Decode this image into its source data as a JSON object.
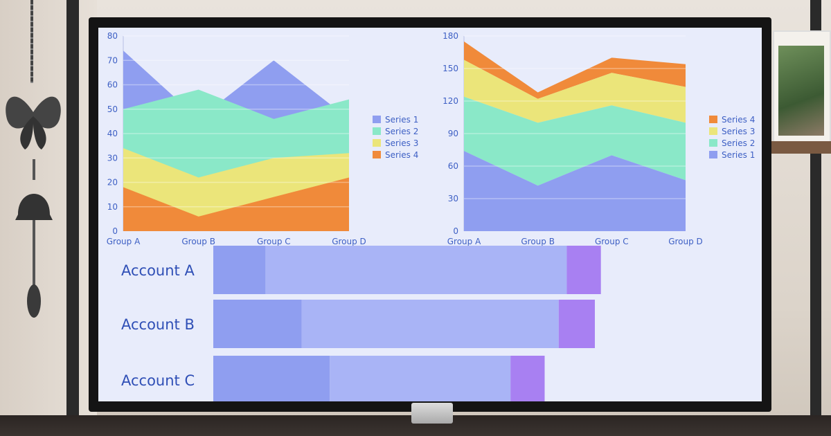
{
  "chart_data": [
    {
      "type": "area",
      "stacked": false,
      "categories": [
        "Group A",
        "Group B",
        "Group C",
        "Group D"
      ],
      "ylim": [
        0,
        80
      ],
      "yticks": [
        0,
        10,
        20,
        30,
        40,
        50,
        60,
        70,
        80
      ],
      "legend": "right",
      "series": [
        {
          "name": "Series 1",
          "color": "#8f9ef0",
          "values": [
            74,
            46,
            70,
            46
          ]
        },
        {
          "name": "Series 2",
          "color": "#8ae8c8",
          "values": [
            50,
            58,
            46,
            54
          ]
        },
        {
          "name": "Series 3",
          "color": "#ebe57a",
          "values": [
            34,
            22,
            30,
            32
          ]
        },
        {
          "name": "Series 4",
          "color": "#f08a3a",
          "values": [
            18,
            6,
            14,
            22
          ]
        }
      ]
    },
    {
      "type": "area",
      "stacked": true,
      "categories": [
        "Group A",
        "Group B",
        "Group C",
        "Group D"
      ],
      "ylim": [
        0,
        180
      ],
      "yticks": [
        0,
        30,
        60,
        90,
        120,
        150,
        180
      ],
      "legend": "right",
      "series": [
        {
          "name": "Series 1",
          "color": "#8f9ef0",
          "values": [
            74,
            42,
            70,
            47
          ]
        },
        {
          "name": "Series 2",
          "color": "#8ae8c8",
          "values": [
            50,
            58,
            46,
            53
          ]
        },
        {
          "name": "Series 3",
          "color": "#ebe57a",
          "values": [
            34,
            22,
            30,
            33
          ]
        },
        {
          "name": "Series 4",
          "color": "#f08a3a",
          "values": [
            17,
            6,
            14,
            21
          ]
        }
      ]
    },
    {
      "type": "bar",
      "orientation": "horizontal",
      "stacked": true,
      "categories": [
        "Account A",
        "Account B",
        "Account C"
      ],
      "series": [
        {
          "color": "#8f9ef0",
          "values": [
            13,
            22,
            29
          ]
        },
        {
          "color": "#a9b4f6",
          "values": [
            75,
            64,
            45
          ]
        },
        {
          "color": "#a880f2",
          "values": [
            8.5,
            9,
            8.5
          ]
        }
      ]
    }
  ]
}
